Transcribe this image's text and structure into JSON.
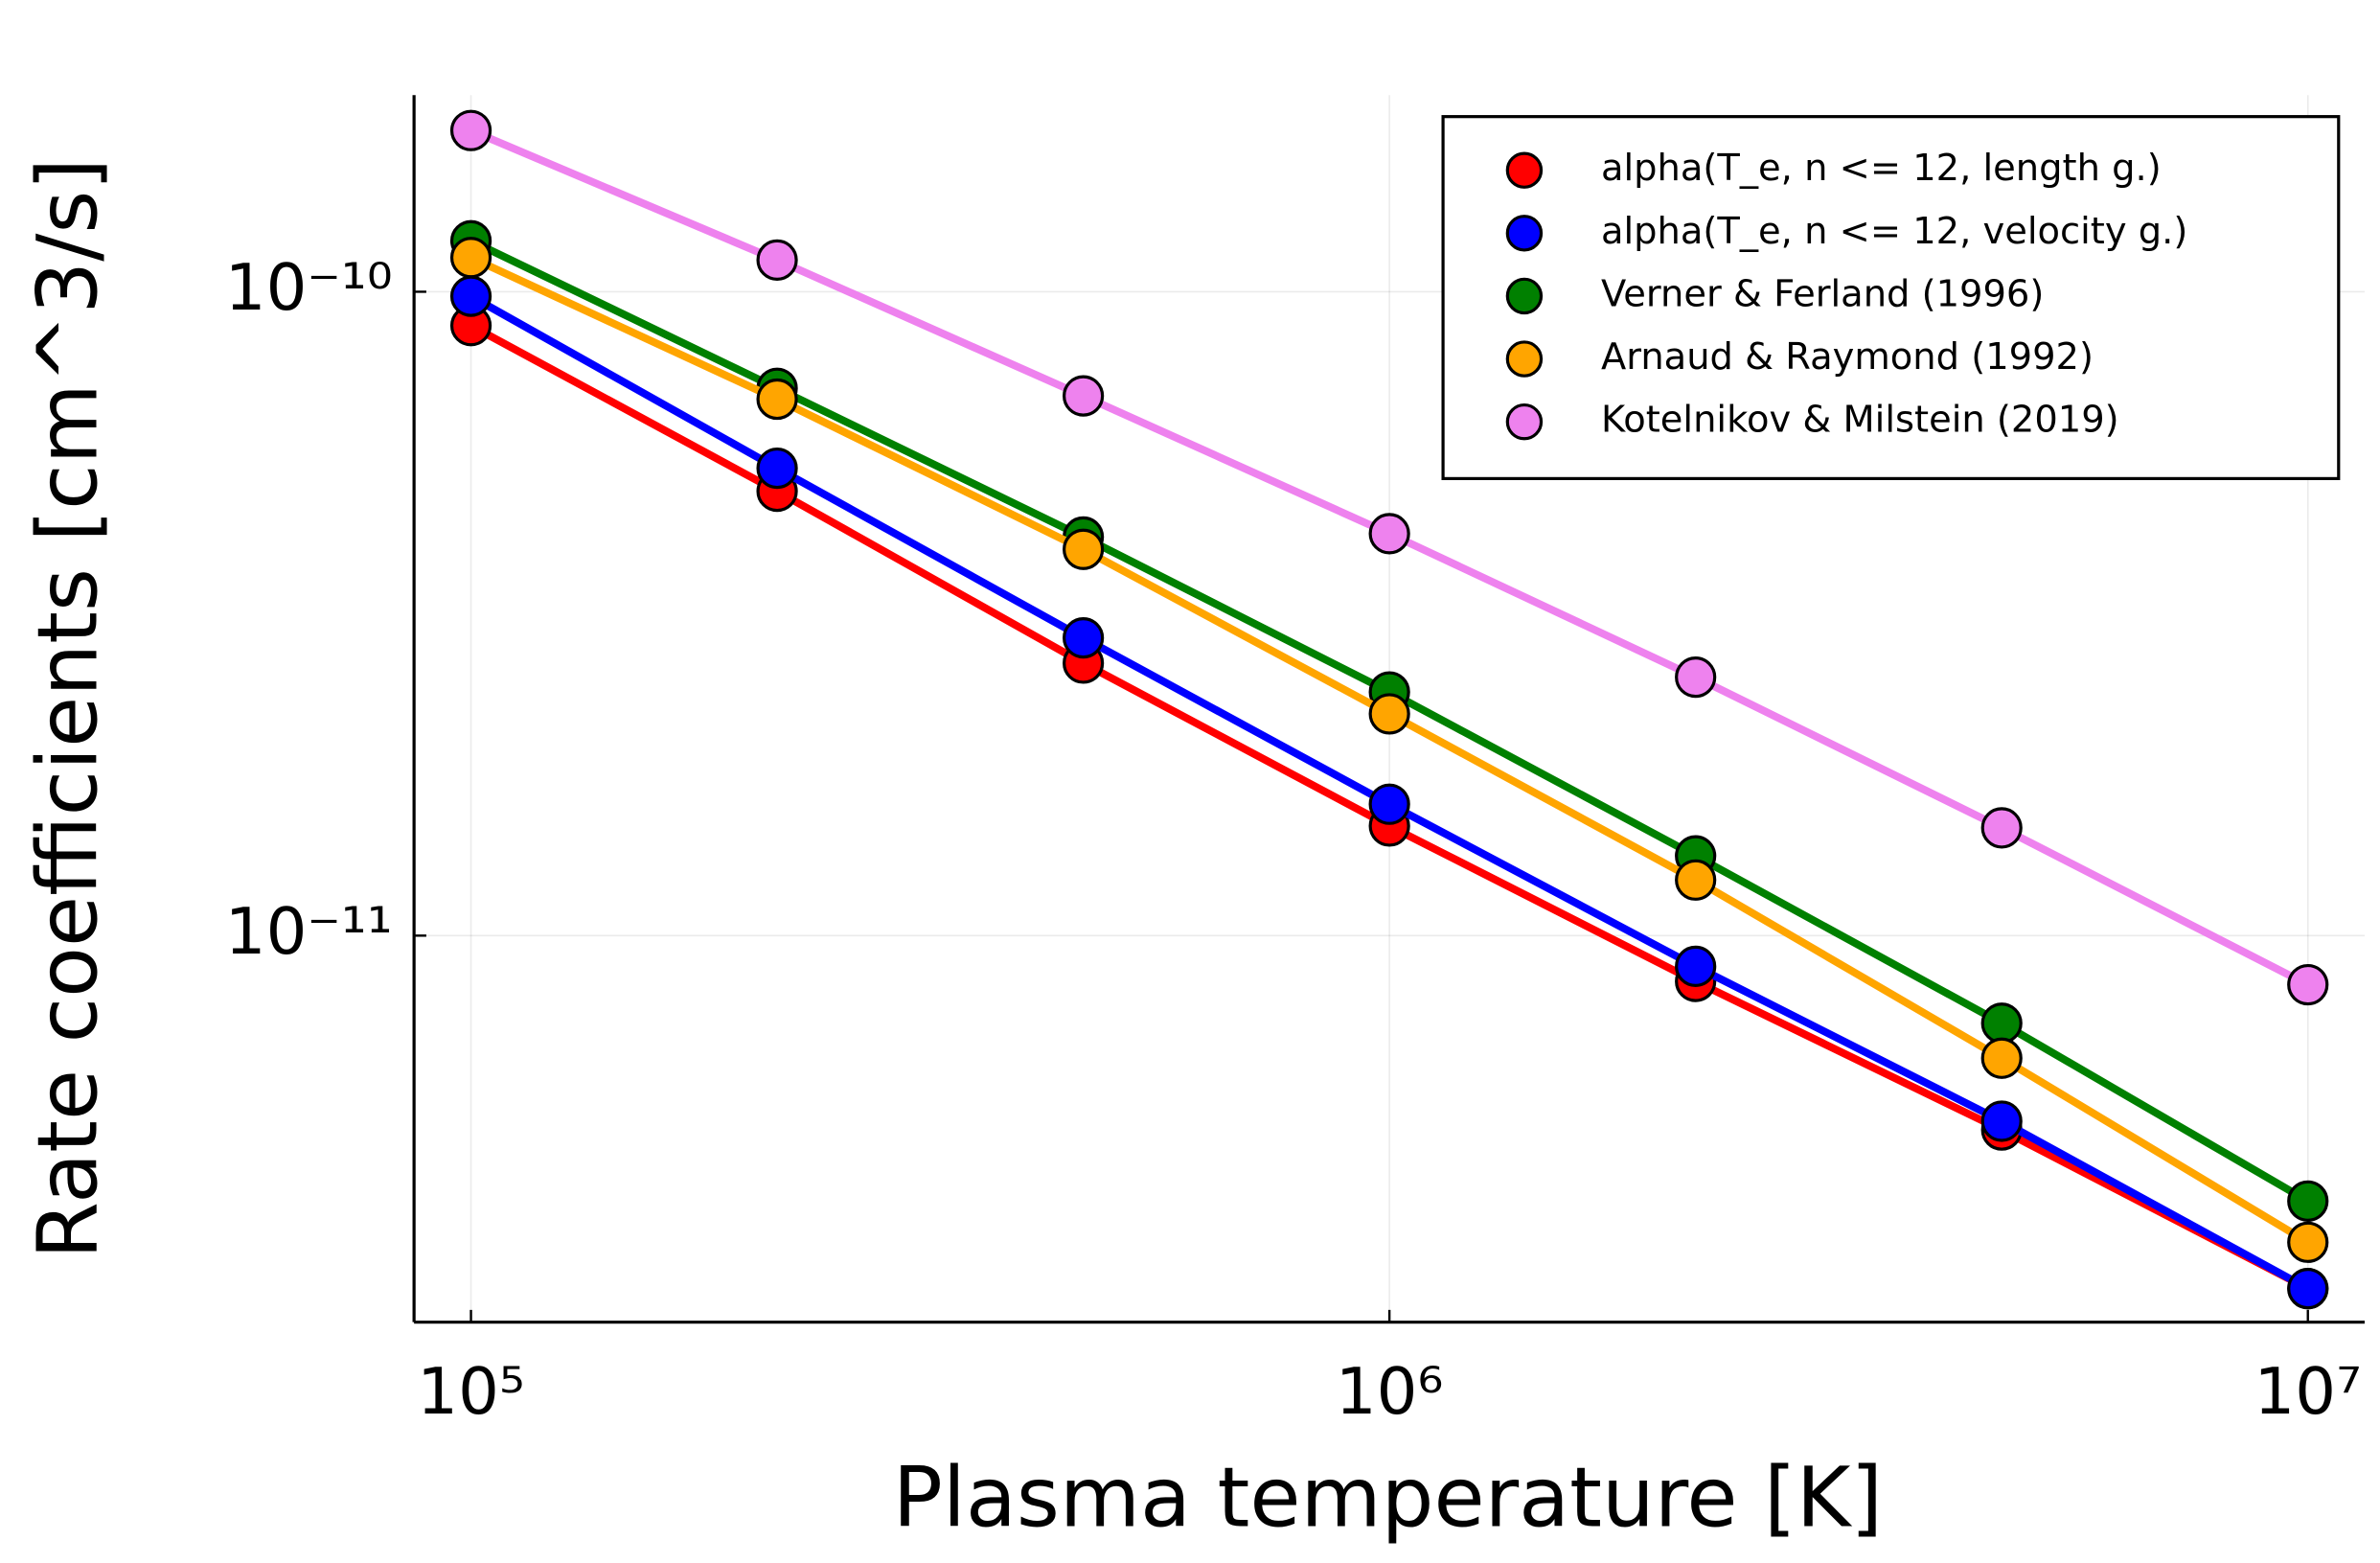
{
  "chart_data": {
    "type": "line",
    "xlabel": "Plasma temperature [K]",
    "ylabel": "Rate coefficients [cm^3/s]",
    "x": [
      100000,
      215443,
      464159,
      1000000,
      2154435,
      4641589,
      10000000
    ],
    "series": [
      {
        "name": "alpha(T_e, n <= 12, length g.)",
        "color": "#ff0000",
        "values": [
          8.86e-11,
          4.9e-11,
          2.65e-11,
          1.48e-11,
          8.49e-12,
          4.99e-12,
          2.83e-12
        ]
      },
      {
        "name": "alpha(T_e, n <= 12, velocity g.)",
        "color": "#0000ff",
        "values": [
          9.84e-11,
          5.32e-11,
          2.9e-11,
          1.6e-11,
          8.96e-12,
          5.15e-12,
          2.83e-12
        ]
      },
      {
        "name": "Verner & Ferland (1996)",
        "color": "#008000",
        "values": [
          1.2e-10,
          7.08e-11,
          4.16e-11,
          2.39e-11,
          1.33e-11,
          7.31e-12,
          3.87e-12
        ]
      },
      {
        "name": "Arnaud & Raymond (1992)",
        "color": "#ffa500",
        "values": [
          1.13e-10,
          6.81e-11,
          3.98e-11,
          2.21e-11,
          1.22e-11,
          6.45e-12,
          3.34e-12
        ]
      },
      {
        "name": "Kotelnikov & Milstein (2019)",
        "color": "#ee82ee",
        "values": [
          1.78e-10,
          1.12e-10,
          6.89e-11,
          4.21e-11,
          2.52e-11,
          1.47e-11,
          8.39e-12
        ]
      }
    ],
    "xlim": [
      86700,
      11530000
    ],
    "ylim": [
      2.51e-12,
      2.02e-10
    ],
    "xticks": [
      {
        "value": 100000,
        "label": "10⁵"
      },
      {
        "value": 1000000,
        "label": "10⁶"
      },
      {
        "value": 10000000,
        "label": "10⁷"
      }
    ],
    "yticks": [
      {
        "value": 1e-11,
        "label": "10⁻¹¹"
      },
      {
        "value": 1e-10,
        "label": "10⁻¹⁰"
      }
    ],
    "xscale": "log",
    "yscale": "log",
    "grid": true,
    "markers": true,
    "legend": "top-right"
  }
}
